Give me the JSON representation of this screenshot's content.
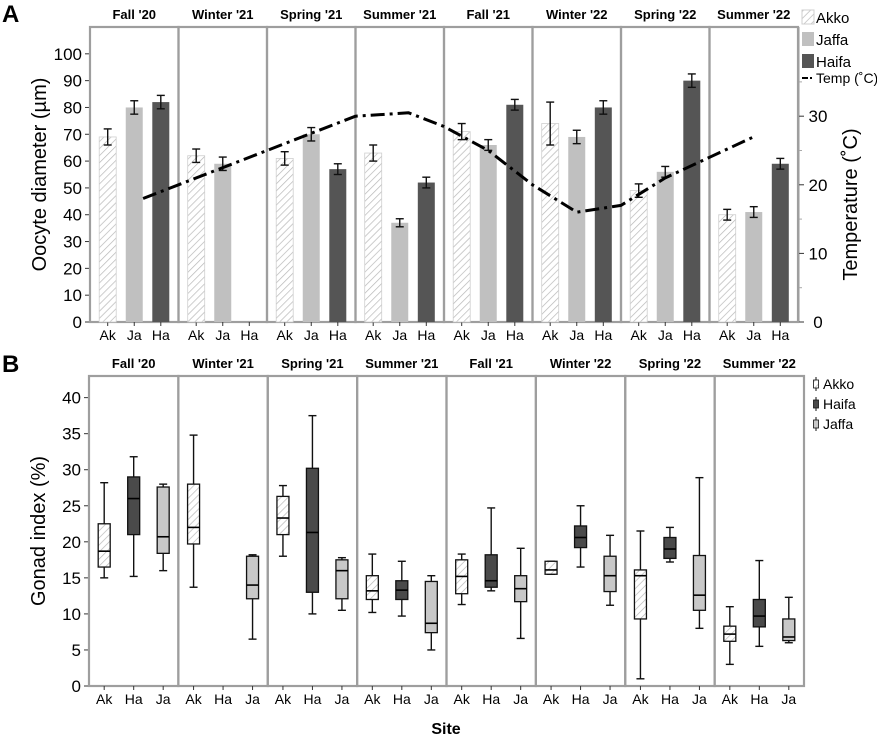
{
  "chart_data": [
    {
      "type": "bar",
      "panel_label": "A",
      "ylabel": "Oocyte diameter (µm)",
      "y2label": "Temperature (˚C)",
      "ylim": [
        0,
        110
      ],
      "y2lim": [
        0,
        43
      ],
      "yticks": [
        "0",
        "10",
        "20",
        "30",
        "40",
        "50",
        "60",
        "70",
        "80",
        "90",
        "100"
      ],
      "y2ticks": [
        "0",
        "10",
        "20",
        "30"
      ],
      "seasons": [
        "Fall '20",
        "Winter '21",
        "Spring '21",
        "Summer '21",
        "Fall '21",
        "Winter '22",
        "Spring '22",
        "Summer '22"
      ],
      "sites": [
        "Ak",
        "Ja",
        "Ha"
      ],
      "series": [
        {
          "name": "Akko",
          "values": [
            69,
            62,
            61,
            63,
            71,
            74,
            49,
            40
          ],
          "errors": [
            3,
            2.5,
            2.5,
            3,
            3,
            8,
            2.5,
            2
          ],
          "color": "#ffffff",
          "pattern": "hatch"
        },
        {
          "name": "Jaffa",
          "values": [
            80,
            59,
            70,
            37,
            66,
            69,
            56,
            41
          ],
          "errors": [
            2.5,
            2.5,
            2.5,
            1.5,
            2,
            2.5,
            2,
            2
          ],
          "color": "#c0c0c0"
        },
        {
          "name": "Haifa",
          "values": [
            82,
            null,
            57,
            52,
            81,
            80,
            90,
            59
          ],
          "errors": [
            2.5,
            null,
            2,
            2,
            2,
            2.5,
            2.5,
            2
          ],
          "color": "#555555"
        }
      ],
      "temperature": {
        "name": "Temp (˚C)",
        "x": [
          1.6,
          2.0,
          2.5,
          3.0,
          3.5,
          4.0,
          4.6,
          5.0,
          5.5,
          6.0,
          6.5,
          7.0,
          7.5,
          8.0,
          8.5
        ],
        "values": [
          18,
          20,
          22.5,
          25,
          27.5,
          30,
          30.5,
          28.5,
          25,
          20,
          16,
          17,
          21,
          24,
          27
        ]
      },
      "legend": [
        "Akko",
        "Jaffa",
        "Haifa",
        "Temp (˚C)"
      ]
    },
    {
      "type": "box",
      "panel_label": "B",
      "ylabel": "Gonad index (%)",
      "xlabel": "Site",
      "ylim": [
        0,
        43
      ],
      "yticks": [
        "0",
        "5",
        "10",
        "15",
        "20",
        "25",
        "30",
        "35",
        "40"
      ],
      "seasons": [
        "Fall '20",
        "Winter '21",
        "Spring '21",
        "Summer '21",
        "Fall '21",
        "Winter '22",
        "Spring '22",
        "Summer '22"
      ],
      "sites": [
        "Ak",
        "Ha",
        "Ja"
      ],
      "series": [
        {
          "name": "Akko",
          "color": "#ffffff",
          "pattern": "hatch",
          "boxes": [
            {
              "min": 15,
              "q1": 16.5,
              "med": 18.7,
              "q3": 22.5,
              "max": 28.2
            },
            {
              "min": 13.7,
              "q1": 19.7,
              "med": 22,
              "q3": 28,
              "max": 34.8
            },
            {
              "min": 18,
              "q1": 21,
              "med": 23.3,
              "q3": 26.3,
              "max": 27.8
            },
            {
              "min": 10.2,
              "q1": 12,
              "med": 13.2,
              "q3": 15.3,
              "max": 18.3
            },
            {
              "min": 11.3,
              "q1": 12.8,
              "med": 15.2,
              "q3": 17.5,
              "max": 18.3
            },
            {
              "min": 15.5,
              "q1": 15.5,
              "med": 16.1,
              "q3": 17.3,
              "max": 17.3
            },
            {
              "min": 1,
              "q1": 9.3,
              "med": 15.3,
              "q3": 16.1,
              "max": 21.5
            },
            {
              "min": 3,
              "q1": 6.2,
              "med": 7.2,
              "q3": 8.3,
              "max": 11
            }
          ]
        },
        {
          "name": "Haifa",
          "color": "#4a4a4a",
          "boxes": [
            {
              "min": 15.2,
              "q1": 21,
              "med": 26,
              "q3": 29,
              "max": 31.8
            },
            null,
            {
              "min": 10,
              "q1": 13,
              "med": 21.3,
              "q3": 30.2,
              "max": 37.5
            },
            {
              "min": 9.7,
              "q1": 12,
              "med": 13.3,
              "q3": 14.6,
              "max": 17.3
            },
            {
              "min": 13.2,
              "q1": 13.7,
              "med": 14.6,
              "q3": 18.2,
              "max": 24.7
            },
            {
              "min": 16.5,
              "q1": 19.2,
              "med": 20.6,
              "q3": 22.2,
              "max": 25
            },
            {
              "min": 17.2,
              "q1": 17.7,
              "med": 19,
              "q3": 20.6,
              "max": 22
            },
            {
              "min": 5.5,
              "q1": 8.2,
              "med": 9.7,
              "q3": 12,
              "max": 17.4
            }
          ]
        },
        {
          "name": "Jaffa",
          "color": "#c8c8c8",
          "boxes": [
            {
              "min": 16,
              "q1": 18.4,
              "med": 20.7,
              "q3": 27.6,
              "max": 28
            },
            {
              "min": 6.5,
              "q1": 12.1,
              "med": 14,
              "q3": 18,
              "max": 18.2
            },
            {
              "min": 10.5,
              "q1": 12.1,
              "med": 16,
              "q3": 17.5,
              "max": 17.8
            },
            {
              "min": 5,
              "q1": 7.4,
              "med": 8.7,
              "q3": 14.5,
              "max": 15.3
            },
            {
              "min": 6.6,
              "q1": 11.7,
              "med": 13.5,
              "q3": 15.3,
              "max": 19.1
            },
            {
              "min": 11.2,
              "q1": 13.1,
              "med": 15.3,
              "q3": 18,
              "max": 20.9
            },
            {
              "min": 8,
              "q1": 10.5,
              "med": 12.6,
              "q3": 18.1,
              "max": 28.9
            },
            {
              "min": 6,
              "q1": 6.3,
              "med": 6.8,
              "q3": 9.3,
              "max": 12.3
            }
          ]
        }
      ],
      "legend": [
        "Akko",
        "Haifa",
        "Jaffa"
      ]
    }
  ]
}
